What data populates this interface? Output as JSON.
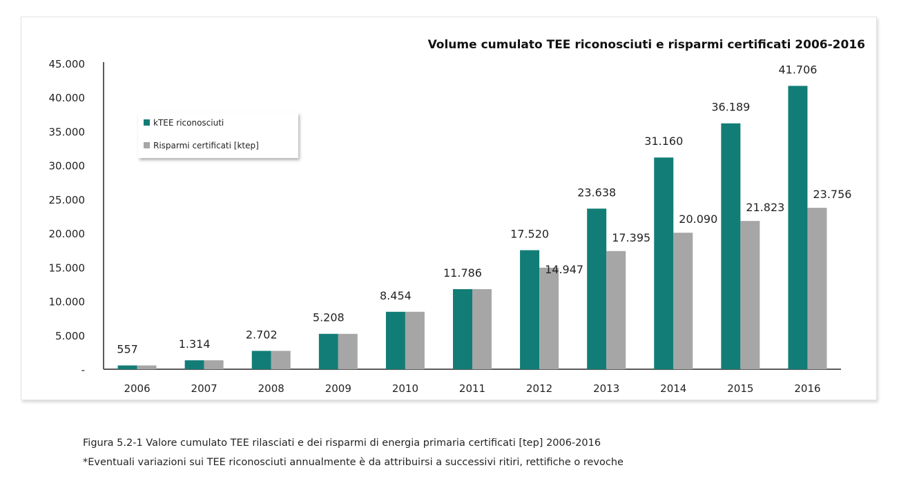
{
  "chart_data": {
    "type": "bar",
    "title": "Volume cumulato TEE riconosciuti e risparmi certificati 2006-2016",
    "categories": [
      "2006",
      "2007",
      "2008",
      "2009",
      "2010",
      "2011",
      "2012",
      "2013",
      "2014",
      "2015",
      "2016"
    ],
    "series": [
      {
        "name": "kTEE riconosciuti",
        "color": "#127d76",
        "values": [
          557,
          1314,
          2702,
          5208,
          8454,
          11786,
          17520,
          23638,
          31160,
          36189,
          41706
        ],
        "labels": [
          "557",
          "1.314",
          "2.702",
          "5.208",
          "8.454",
          "11.786",
          "17.520",
          "23.638",
          "31.160",
          "36.189",
          "41.706"
        ]
      },
      {
        "name": "Risparmi certificati [ktep]",
        "color": "#a6a6a6",
        "values": [
          557,
          1314,
          2702,
          5208,
          8454,
          11786,
          14947,
          17395,
          20090,
          21823,
          23756
        ],
        "labels": [
          "",
          "",
          "",
          "",
          "",
          "",
          "14.947",
          "17.395",
          "20.090",
          "21.823",
          "23.756"
        ]
      }
    ],
    "yticks": [
      "-",
      "5.000",
      "10.000",
      "15.000",
      "20.000",
      "25.000",
      "30.000",
      "35.000",
      "40.000",
      "45.000"
    ],
    "ylim": [
      0,
      45000
    ],
    "grid": false,
    "legend": "top-left"
  },
  "caption": {
    "line1": "Figura 5.2-1 Valore cumulato TEE rilasciati e dei risparmi di energia primaria certificati [tep] 2006-2016",
    "line2": "*Eventuali variazioni sui TEE riconosciuti annualmente è da attribuirsi a successivi ritiri, rettifiche o revoche"
  }
}
